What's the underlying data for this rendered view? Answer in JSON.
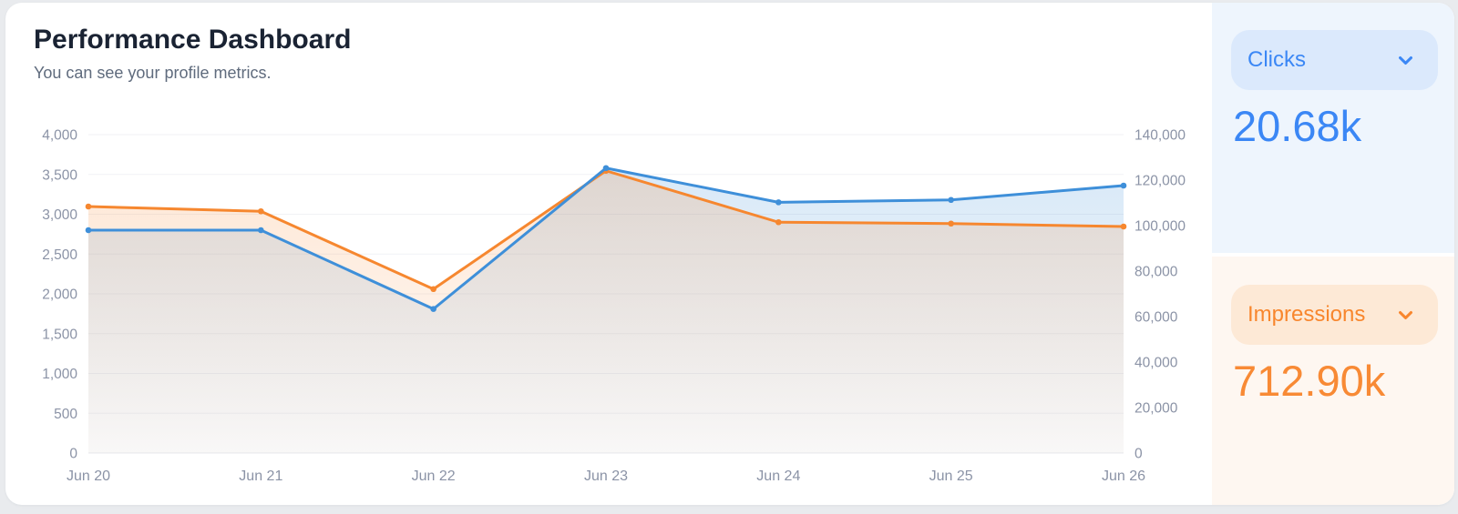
{
  "header": {
    "title": "Performance Dashboard",
    "subtitle": "You can see your profile metrics."
  },
  "metrics": {
    "clicks": {
      "label": "Clicks",
      "value": "20.68k"
    },
    "impressions": {
      "label": "Impressions",
      "value": "712.90k"
    }
  },
  "chart_data": {
    "type": "area",
    "title": "",
    "x": [
      "Jun 20",
      "Jun 21",
      "Jun 22",
      "Jun 23",
      "Jun 24",
      "Jun 25",
      "Jun 26"
    ],
    "series": [
      {
        "name": "Clicks",
        "axis": "left",
        "color": "#3e8fd9",
        "values": [
          2800,
          2800,
          1810,
          3580,
          3150,
          3180,
          3360
        ]
      },
      {
        "name": "Impressions",
        "axis": "right",
        "color": "#f6872f",
        "values": [
          108400,
          106300,
          72100,
          124100,
          101500,
          100900,
          99600
        ]
      }
    ],
    "left_axis": {
      "min": 0,
      "max": 4000,
      "ticks": [
        "0",
        "500",
        "1,000",
        "1,500",
        "2,000",
        "2,500",
        "3,000",
        "3,500",
        "4,000"
      ]
    },
    "right_axis": {
      "min": 0,
      "max": 140000,
      "ticks": [
        "0",
        "20,000",
        "40,000",
        "60,000",
        "80,000",
        "100,000",
        "120,000",
        "140,000"
      ]
    },
    "grid": true,
    "legend_position": "none"
  },
  "colors": {
    "page_bg": "#e9ebee",
    "card_bg": "#ffffff",
    "title_text": "#1a2333",
    "subtitle_text": "#5f6b7d",
    "axis_label": "#8b93a6",
    "gridline": "#f1f2f5",
    "chart_blue": "#3e8fd9",
    "chart_orange": "#f6872f",
    "accent_blue": "#3b87f5",
    "accent_orange": "#f8862d",
    "panel_blue_bg": "#eef5fd",
    "panel_orange_bg": "#fef7f1",
    "button_blue_bg": "#dbe9fc",
    "button_orange_bg": "#fde9d6"
  }
}
